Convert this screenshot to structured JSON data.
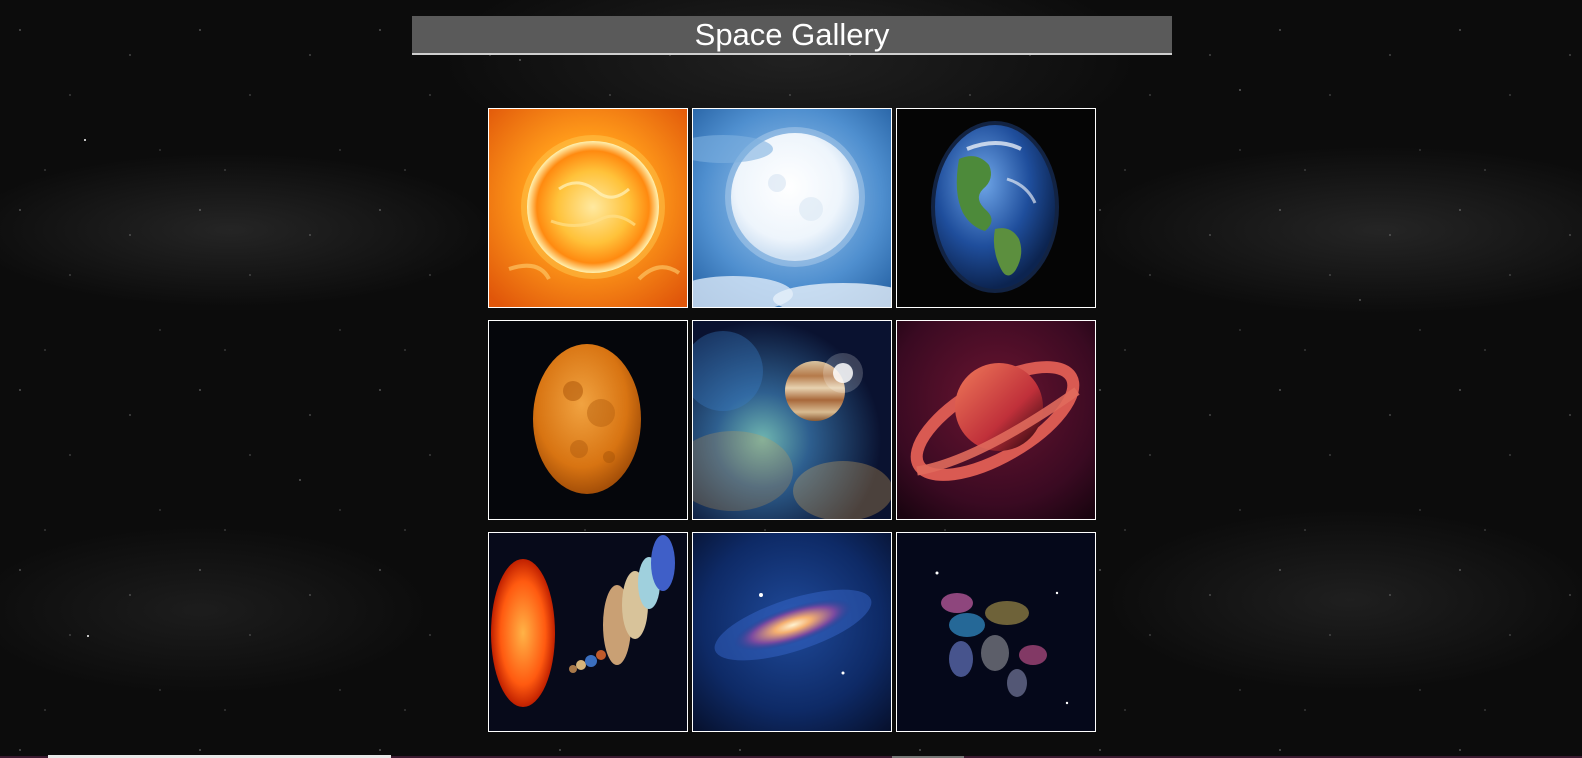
{
  "header": {
    "title": "Space Gallery"
  },
  "gallery": {
    "images": [
      {
        "icon": "sun-image"
      },
      {
        "icon": "full-moon-image"
      },
      {
        "icon": "earth-image"
      },
      {
        "icon": "orange-moon-image"
      },
      {
        "icon": "jupiter-nebula-image"
      },
      {
        "icon": "saturn-red-image"
      },
      {
        "icon": "solar-system-image"
      },
      {
        "icon": "galaxy-image"
      },
      {
        "icon": "galaxies-cluster-image"
      }
    ]
  },
  "colors": {
    "header_bg": "#5a5a5a",
    "header_text": "#ffffff",
    "tile_border": "#ffffff",
    "page_bg": "#0c0c0c"
  }
}
